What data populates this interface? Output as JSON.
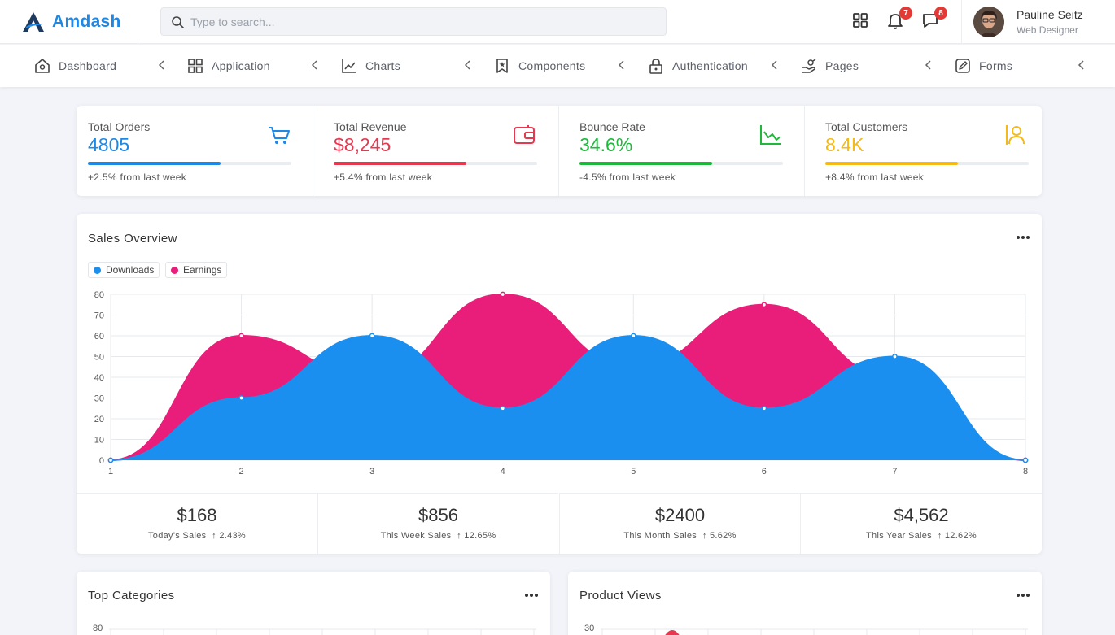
{
  "brand": {
    "name": "Amdash"
  },
  "search": {
    "placeholder": "Type to search..."
  },
  "header": {
    "notification_count": "7",
    "message_count": "8",
    "user_name": "Pauline Seitz",
    "user_role": "Web Designer"
  },
  "nav": [
    {
      "label": "Dashboard",
      "icon": "home-icon"
    },
    {
      "label": "Application",
      "icon": "grid-icon"
    },
    {
      "label": "Charts",
      "icon": "line-chart-icon"
    },
    {
      "label": "Components",
      "icon": "bookmark-icon"
    },
    {
      "label": "Authentication",
      "icon": "lock-icon"
    },
    {
      "label": "Pages",
      "icon": "hand-icon"
    },
    {
      "label": "Forms",
      "icon": "edit-icon"
    }
  ],
  "stats": [
    {
      "title": "Total Orders",
      "value": "4805",
      "foot": "+2.5% from last week",
      "progress": 0.65,
      "color": "#1e88e5",
      "icon": "cart-icon"
    },
    {
      "title": "Total Revenue",
      "value": "$8,245",
      "foot": "+5.4% from last week",
      "progress": 0.65,
      "color": "#e53950",
      "icon": "wallet-icon"
    },
    {
      "title": "Bounce Rate",
      "value": "34.6%",
      "foot": "-4.5% from last week",
      "progress": 0.65,
      "color": "#1eb83b",
      "icon": "trend-chart-icon"
    },
    {
      "title": "Total Customers",
      "value": "8.4K",
      "foot": "+8.4% from last week",
      "progress": 0.65,
      "color": "#f5b918",
      "icon": "users-icon"
    }
  ],
  "sales_overview": {
    "title": "Sales Overview",
    "summary": [
      {
        "value": "$168",
        "label": "Today's Sales",
        "change": "2.43%"
      },
      {
        "value": "$856",
        "label": "This Week Sales",
        "change": "12.65%"
      },
      {
        "value": "$2400",
        "label": "This Month Sales",
        "change": "5.62%"
      },
      {
        "value": "$4,562",
        "label": "This Year Sales",
        "change": "12.62%"
      }
    ]
  },
  "top_categories": {
    "title": "Top Categories",
    "y_first_tick": "80"
  },
  "product_views": {
    "title": "Product Views",
    "y_first_tick": "30"
  },
  "chart_data": {
    "type": "area",
    "x": [
      1,
      2,
      3,
      4,
      5,
      6,
      7,
      8
    ],
    "series": [
      {
        "name": "Downloads",
        "color": "#1a8fef",
        "values": [
          0,
          30,
          60,
          25,
          60,
          25,
          50,
          0
        ]
      },
      {
        "name": "Earnings",
        "color": "#e91e7a",
        "values": [
          0,
          60,
          40,
          80,
          45,
          75,
          40,
          0
        ]
      }
    ],
    "ylim": [
      0,
      80
    ],
    "yticks": [
      0,
      10,
      20,
      30,
      40,
      50,
      60,
      70,
      80
    ],
    "legend": "top-left",
    "grid": true
  }
}
